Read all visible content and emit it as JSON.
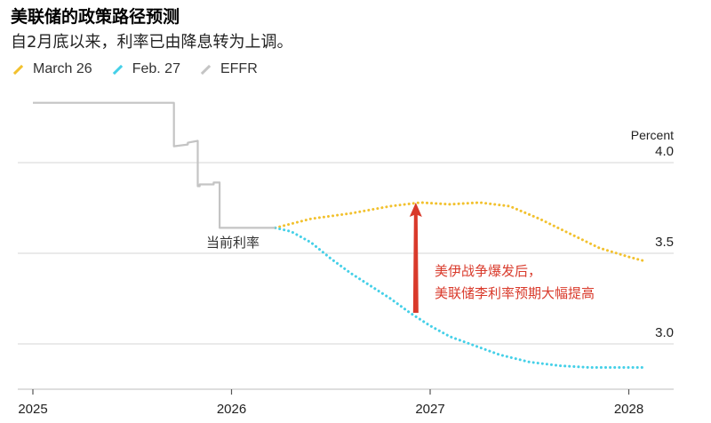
{
  "title": "美联储的政策路径预测",
  "subtitle": "自2月底以来，利率已由降息转为上调。",
  "colors": {
    "march26": "#f2c12e",
    "feb27": "#45d0e8",
    "effr": "#c4c4c4",
    "annotation": "#d93a2b",
    "grid": "#d6d6d6"
  },
  "chart_data": {
    "type": "line",
    "title": "美联储的政策路径预测",
    "subtitle": "自2月底以来，利率已由降息转为上调。",
    "ylabel": "Percent",
    "ylim": [
      2.8,
      4.4
    ],
    "xlim": [
      2025.0,
      2028.3
    ],
    "y_ticks": [
      4.0,
      3.5,
      3.0
    ],
    "y_tick_labels": [
      "4.0",
      "3.5",
      "3.0"
    ],
    "x_ticks": [
      2025,
      2026,
      2027,
      2028
    ],
    "x_tick_labels": [
      "2025",
      "2026",
      "2027",
      "2028"
    ],
    "grid": "horizontal",
    "legend_position": "top-left",
    "series": [
      {
        "name": "March 26",
        "key": "march26",
        "style": "dotted",
        "x": [
          2026.22,
          2026.4,
          2026.6,
          2026.8,
          2026.95,
          2027.1,
          2027.25,
          2027.4,
          2027.55,
          2027.7,
          2027.85,
          2028.0,
          2028.07
        ],
        "y": [
          3.64,
          3.69,
          3.72,
          3.76,
          3.78,
          3.77,
          3.78,
          3.76,
          3.69,
          3.61,
          3.53,
          3.48,
          3.46
        ]
      },
      {
        "name": "Feb. 27",
        "key": "feb27",
        "style": "dotted",
        "x": [
          2026.22,
          2026.3,
          2026.4,
          2026.5,
          2026.6,
          2026.7,
          2026.8,
          2026.9,
          2027.0,
          2027.1,
          2027.2,
          2027.35,
          2027.5,
          2027.65,
          2027.8,
          2028.0,
          2028.07
        ],
        "y": [
          3.64,
          3.62,
          3.56,
          3.47,
          3.39,
          3.32,
          3.25,
          3.17,
          3.1,
          3.04,
          3.0,
          2.94,
          2.9,
          2.88,
          2.87,
          2.87,
          2.87
        ]
      },
      {
        "name": "EFFR",
        "key": "effr",
        "style": "solid",
        "step": true,
        "x": [
          2025.0,
          2025.71,
          2025.71,
          2025.78,
          2025.78,
          2025.83,
          2025.83,
          2025.84,
          2025.84,
          2025.91,
          2025.91,
          2025.94,
          2025.94,
          2026.05,
          2026.05,
          2026.22
        ],
        "y": [
          4.33,
          4.33,
          4.09,
          4.1,
          4.11,
          4.12,
          3.87,
          3.87,
          3.88,
          3.88,
          3.89,
          3.89,
          3.64,
          3.64,
          3.64,
          3.64
        ]
      }
    ],
    "annotations": [
      {
        "text": "当前利率",
        "x": 2026.05,
        "y": 3.64
      },
      {
        "text_lines": [
          "美伊战争爆发后，",
          "美联储李利率预期大幅提高"
        ],
        "arrow_from": [
          2026.95,
          3.18
        ],
        "arrow_to": [
          2026.95,
          3.74
        ]
      }
    ]
  }
}
